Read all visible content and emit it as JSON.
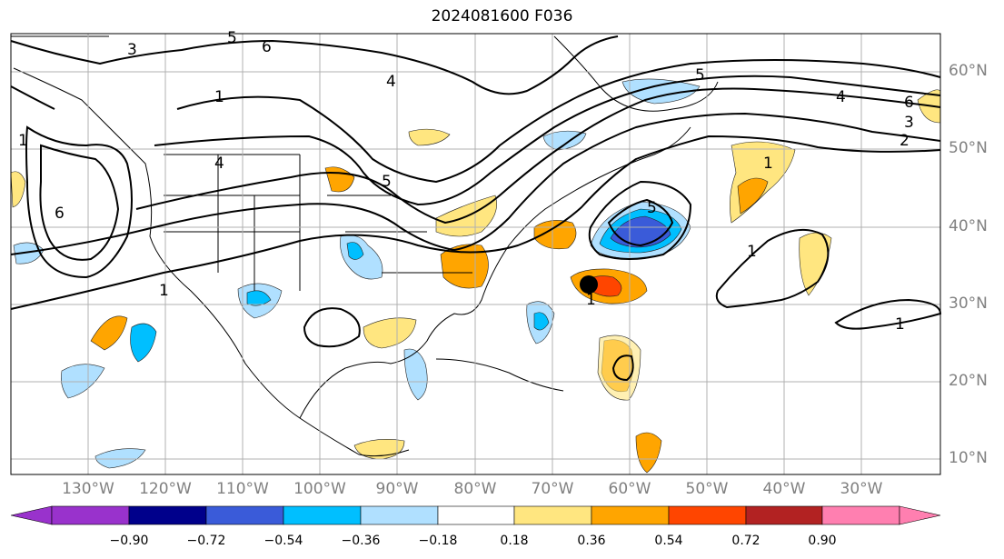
{
  "title": "2024081600 F036",
  "map": {
    "lat_labels": [
      "60°N",
      "50°N",
      "40°N",
      "30°N",
      "20°N",
      "10°N"
    ],
    "lon_labels": [
      "130°W",
      "120°W",
      "110°W",
      "100°W",
      "90°W",
      "80°W",
      "70°W",
      "60°W",
      "50°W",
      "40°W",
      "30°W"
    ],
    "contour_labels": [
      "1",
      "2",
      "3",
      "4",
      "5",
      "6"
    ]
  },
  "colorbar": {
    "ticks": [
      "−0.90",
      "−0.72",
      "−0.54",
      "−0.36",
      "−0.18",
      "0.18",
      "0.36",
      "0.54",
      "0.72",
      "0.90"
    ],
    "colors": [
      "#9932cc",
      "#00008b",
      "#3a5bd9",
      "#00bfff",
      "#b0e0ff",
      "#ffffff",
      "#ffe680",
      "#ffa500",
      "#ff4500",
      "#b22222",
      "#ff7fb0"
    ]
  }
}
